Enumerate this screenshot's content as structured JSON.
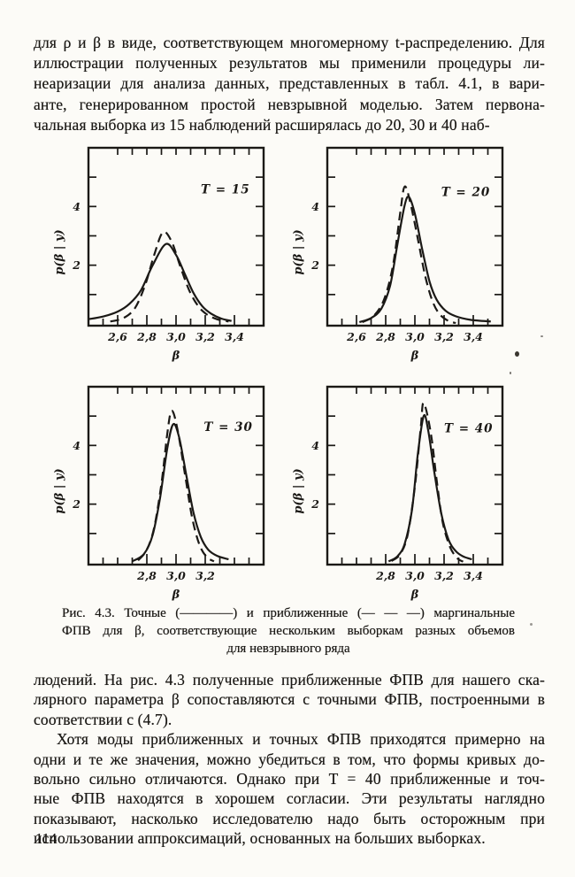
{
  "page": {
    "number": "114",
    "ink_color": "#1b1916",
    "paper_color": "#fcfbf7"
  },
  "paragraph1": {
    "lines": [
      "для ρ и β в виде, соответствующем многомерному t-распределению. Для",
      "иллюстрации полученных результатов мы применили процедуры ли-",
      "неаризации для анализа данных, представленных в табл. 4.1, в вари-",
      "анте, генерированном простой невзрывной моделью. Затем первона-",
      "чальная выборка из 15 наблюдений расширялась до 20, 30 и 40 наб-"
    ]
  },
  "caption": {
    "lines": [
      "Рис. 4.3. Точные (————) и приближенные (— — —) маргинальные",
      "ФПВ для β, соответствующие нескольким выборкам разных объемов",
      "для невзрывного ряда"
    ],
    "legend": {
      "solid": "точные ФПВ",
      "dashed": "приближенные ФПВ"
    }
  },
  "paragraph2": {
    "lines": [
      "людений. На рис. 4.3 полученные приближенные ФПВ для нашего ска-",
      "лярного параметра β сопоставляются с точными ФПВ, построенными в",
      "соответствии с (4.7)."
    ]
  },
  "paragraph3": {
    "lines": [
      "Хотя моды приближенных и точных ФПВ приходятся примерно на",
      "одни и те же значения, можно убедиться в том, что формы кривых до-",
      "вольно сильно отличаются. Однако при T = 40 приближенные и точ-",
      "ные ФПВ находятся в хорошем согласии. Эти результаты наглядно",
      "показывают, насколько исследователю надо быть осторожным при",
      "использовании аппроксимаций, основанных на больших выборках."
    ]
  },
  "chart_data": [
    {
      "type": "line",
      "title": "T = 15",
      "xlabel": "β",
      "ylabel": "p(β | y)",
      "xlim": [
        2.4,
        3.6
      ],
      "ylim": [
        0,
        6
      ],
      "x_ticks": [
        2.5,
        2.6,
        2.7,
        2.8,
        2.9,
        3.0,
        3.1,
        3.2,
        3.3,
        3.4,
        3.5
      ],
      "x_top_ticks": [
        2.6,
        2.7,
        2.8,
        2.9,
        3.0,
        3.1,
        3.2,
        3.3,
        3.4,
        3.5
      ],
      "x_labeled": [
        {
          "v": 2.6,
          "t": "2,6"
        },
        {
          "v": 2.8,
          "t": "2,8"
        },
        {
          "v": 3.0,
          "t": "3,0"
        },
        {
          "v": 3.2,
          "t": "3,2"
        },
        {
          "v": 3.4,
          "t": "3,4"
        }
      ],
      "y_ticks": [
        1,
        2,
        3,
        4,
        5
      ],
      "y_labeled": [
        {
          "v": 2,
          "t": "2"
        },
        {
          "v": 4,
          "t": "4"
        }
      ],
      "title_pos": [
        3.17,
        4.45
      ],
      "series": [
        {
          "name": "точная ФПВ",
          "dash": false,
          "points": [
            [
              2.4,
              0.16
            ],
            [
              2.5,
              0.25
            ],
            [
              2.6,
              0.42
            ],
            [
              2.68,
              0.68
            ],
            [
              2.76,
              1.15
            ],
            [
              2.84,
              2.0
            ],
            [
              2.93,
              2.72
            ],
            [
              3.0,
              2.35
            ],
            [
              3.06,
              1.7
            ],
            [
              3.12,
              1.05
            ],
            [
              3.18,
              0.6
            ],
            [
              3.24,
              0.35
            ],
            [
              3.31,
              0.18
            ],
            [
              3.38,
              0.1
            ]
          ]
        },
        {
          "name": "приближенная ФПВ",
          "dash": true,
          "points": [
            [
              2.55,
              0.08
            ],
            [
              2.64,
              0.2
            ],
            [
              2.72,
              0.55
            ],
            [
              2.79,
              1.35
            ],
            [
              2.85,
              2.35
            ],
            [
              2.91,
              3.12
            ],
            [
              2.97,
              2.8
            ],
            [
              3.03,
              1.95
            ],
            [
              3.09,
              1.15
            ],
            [
              3.15,
              0.62
            ],
            [
              3.21,
              0.33
            ],
            [
              3.28,
              0.16
            ],
            [
              3.36,
              0.08
            ]
          ]
        }
      ]
    },
    {
      "type": "line",
      "title": "T = 20",
      "xlabel": "β",
      "ylabel": "p(β | y)",
      "xlim": [
        2.4,
        3.6
      ],
      "ylim": [
        0,
        6
      ],
      "x_ticks": [
        2.5,
        2.6,
        2.7,
        2.8,
        2.9,
        3.0,
        3.1,
        3.2,
        3.3,
        3.4,
        3.5
      ],
      "x_top_ticks": [
        2.6,
        2.7,
        2.8,
        2.9,
        3.0,
        3.1,
        3.2,
        3.3,
        3.4,
        3.5
      ],
      "x_labeled": [
        {
          "v": 2.6,
          "t": "2,6"
        },
        {
          "v": 2.8,
          "t": "2,8"
        },
        {
          "v": 3.0,
          "t": "3,0"
        },
        {
          "v": 3.2,
          "t": "3,2"
        },
        {
          "v": 3.4,
          "t": "3,4"
        }
      ],
      "y_ticks": [
        1,
        2,
        3,
        4,
        5
      ],
      "y_labeled": [
        {
          "v": 2,
          "t": "2"
        },
        {
          "v": 4,
          "t": "4"
        }
      ],
      "title_pos": [
        3.18,
        4.35
      ],
      "series": [
        {
          "name": "точная ФПВ",
          "dash": false,
          "points": [
            [
              2.62,
              0.06
            ],
            [
              2.7,
              0.2
            ],
            [
              2.77,
              0.52
            ],
            [
              2.83,
              1.3
            ],
            [
              2.88,
              2.7
            ],
            [
              2.93,
              4.05
            ],
            [
              2.96,
              4.32
            ],
            [
              3.0,
              3.75
            ],
            [
              3.05,
              2.55
            ],
            [
              3.1,
              1.45
            ],
            [
              3.15,
              0.82
            ],
            [
              3.21,
              0.45
            ],
            [
              3.28,
              0.26
            ],
            [
              3.38,
              0.14
            ],
            [
              3.52,
              0.08
            ]
          ]
        },
        {
          "name": "приближенная ФПВ",
          "dash": true,
          "points": [
            [
              2.64,
              0.06
            ],
            [
              2.72,
              0.28
            ],
            [
              2.79,
              0.85
            ],
            [
              2.85,
              2.0
            ],
            [
              2.9,
              3.8
            ],
            [
              2.93,
              4.68
            ],
            [
              2.97,
              4.1
            ],
            [
              3.02,
              2.9
            ],
            [
              3.07,
              1.65
            ],
            [
              3.12,
              0.78
            ],
            [
              3.17,
              0.33
            ],
            [
              3.23,
              0.1
            ],
            [
              3.28,
              0.03
            ]
          ]
        }
      ]
    },
    {
      "type": "line",
      "title": "T = 30",
      "xlabel": "β",
      "ylabel": "p(β | y)",
      "xlim": [
        2.4,
        3.6
      ],
      "ylim": [
        0,
        6
      ],
      "x_ticks": [
        2.5,
        2.6,
        2.7,
        2.8,
        2.9,
        3.0,
        3.1,
        3.2,
        3.3,
        3.4,
        3.5
      ],
      "x_top_ticks": [
        2.6,
        2.7,
        2.8,
        2.9,
        3.0,
        3.1,
        3.2,
        3.3,
        3.4,
        3.5
      ],
      "x_labeled": [
        {
          "v": 2.8,
          "t": "2,8"
        },
        {
          "v": 3.0,
          "t": "3,0"
        },
        {
          "v": 3.2,
          "t": "3,2"
        }
      ],
      "y_ticks": [
        1,
        2,
        3,
        4,
        5
      ],
      "y_labeled": [
        {
          "v": 2,
          "t": "2"
        },
        {
          "v": 4,
          "t": "4"
        }
      ],
      "title_pos": [
        3.19,
        4.5
      ],
      "series": [
        {
          "name": "точная ФПВ",
          "dash": false,
          "points": [
            [
              2.7,
              0.05
            ],
            [
              2.78,
              0.3
            ],
            [
              2.84,
              0.95
            ],
            [
              2.89,
              2.2
            ],
            [
              2.94,
              3.9
            ],
            [
              2.98,
              4.72
            ],
            [
              3.02,
              4.3
            ],
            [
              3.07,
              3.0
            ],
            [
              3.12,
              1.7
            ],
            [
              3.17,
              0.88
            ],
            [
              3.22,
              0.45
            ],
            [
              3.28,
              0.24
            ],
            [
              3.36,
              0.12
            ]
          ]
        },
        {
          "name": "приближенная ФПВ",
          "dash": true,
          "points": [
            [
              2.74,
              0.08
            ],
            [
              2.8,
              0.45
            ],
            [
              2.85,
              1.2
            ],
            [
              2.9,
              2.7
            ],
            [
              2.94,
              4.4
            ],
            [
              2.97,
              5.18
            ],
            [
              3.01,
              4.55
            ],
            [
              3.06,
              3.05
            ],
            [
              3.11,
              1.55
            ],
            [
              3.16,
              0.62
            ],
            [
              3.21,
              0.2
            ],
            [
              3.26,
              0.05
            ]
          ]
        }
      ]
    },
    {
      "type": "line",
      "title": "T = 40",
      "xlabel": "β",
      "ylabel": "p(β | y)",
      "xlim": [
        2.4,
        3.6
      ],
      "ylim": [
        0,
        6
      ],
      "x_ticks": [
        2.5,
        2.6,
        2.7,
        2.8,
        2.9,
        3.0,
        3.1,
        3.2,
        3.3,
        3.4,
        3.5
      ],
      "x_top_ticks": [
        2.6,
        2.7,
        2.8,
        2.9,
        3.0,
        3.1,
        3.2,
        3.3,
        3.4,
        3.5
      ],
      "x_labeled": [
        {
          "v": 2.8,
          "t": "2,8"
        },
        {
          "v": 3.0,
          "t": "3,0"
        },
        {
          "v": 3.2,
          "t": "3,2"
        },
        {
          "v": 3.4,
          "t": "3,4"
        }
      ],
      "y_ticks": [
        1,
        2,
        3,
        4,
        5
      ],
      "y_labeled": [
        {
          "v": 2,
          "t": "2"
        },
        {
          "v": 4,
          "t": "4"
        }
      ],
      "title_pos": [
        3.2,
        4.45
      ],
      "series": [
        {
          "name": "точная ФПВ",
          "dash": false,
          "points": [
            [
              2.82,
              0.05
            ],
            [
              2.88,
              0.22
            ],
            [
              2.93,
              0.65
            ],
            [
              2.98,
              1.8
            ],
            [
              3.02,
              3.7
            ],
            [
              3.06,
              5.0
            ],
            [
              3.09,
              4.55
            ],
            [
              3.13,
              3.2
            ],
            [
              3.18,
              1.7
            ],
            [
              3.23,
              0.8
            ],
            [
              3.28,
              0.4
            ],
            [
              3.33,
              0.22
            ],
            [
              3.39,
              0.12
            ]
          ]
        },
        {
          "name": "приближенная ФПВ",
          "dash": true,
          "points": [
            [
              2.84,
              0.06
            ],
            [
              2.9,
              0.3
            ],
            [
              2.95,
              0.95
            ],
            [
              3.0,
              2.6
            ],
            [
              3.04,
              4.6
            ],
            [
              3.06,
              5.45
            ],
            [
              3.11,
              4.4
            ],
            [
              3.15,
              2.8
            ],
            [
              3.19,
              1.4
            ],
            [
              3.24,
              0.55
            ],
            [
              3.29,
              0.16
            ],
            [
              3.33,
              0.04
            ]
          ]
        }
      ]
    }
  ]
}
